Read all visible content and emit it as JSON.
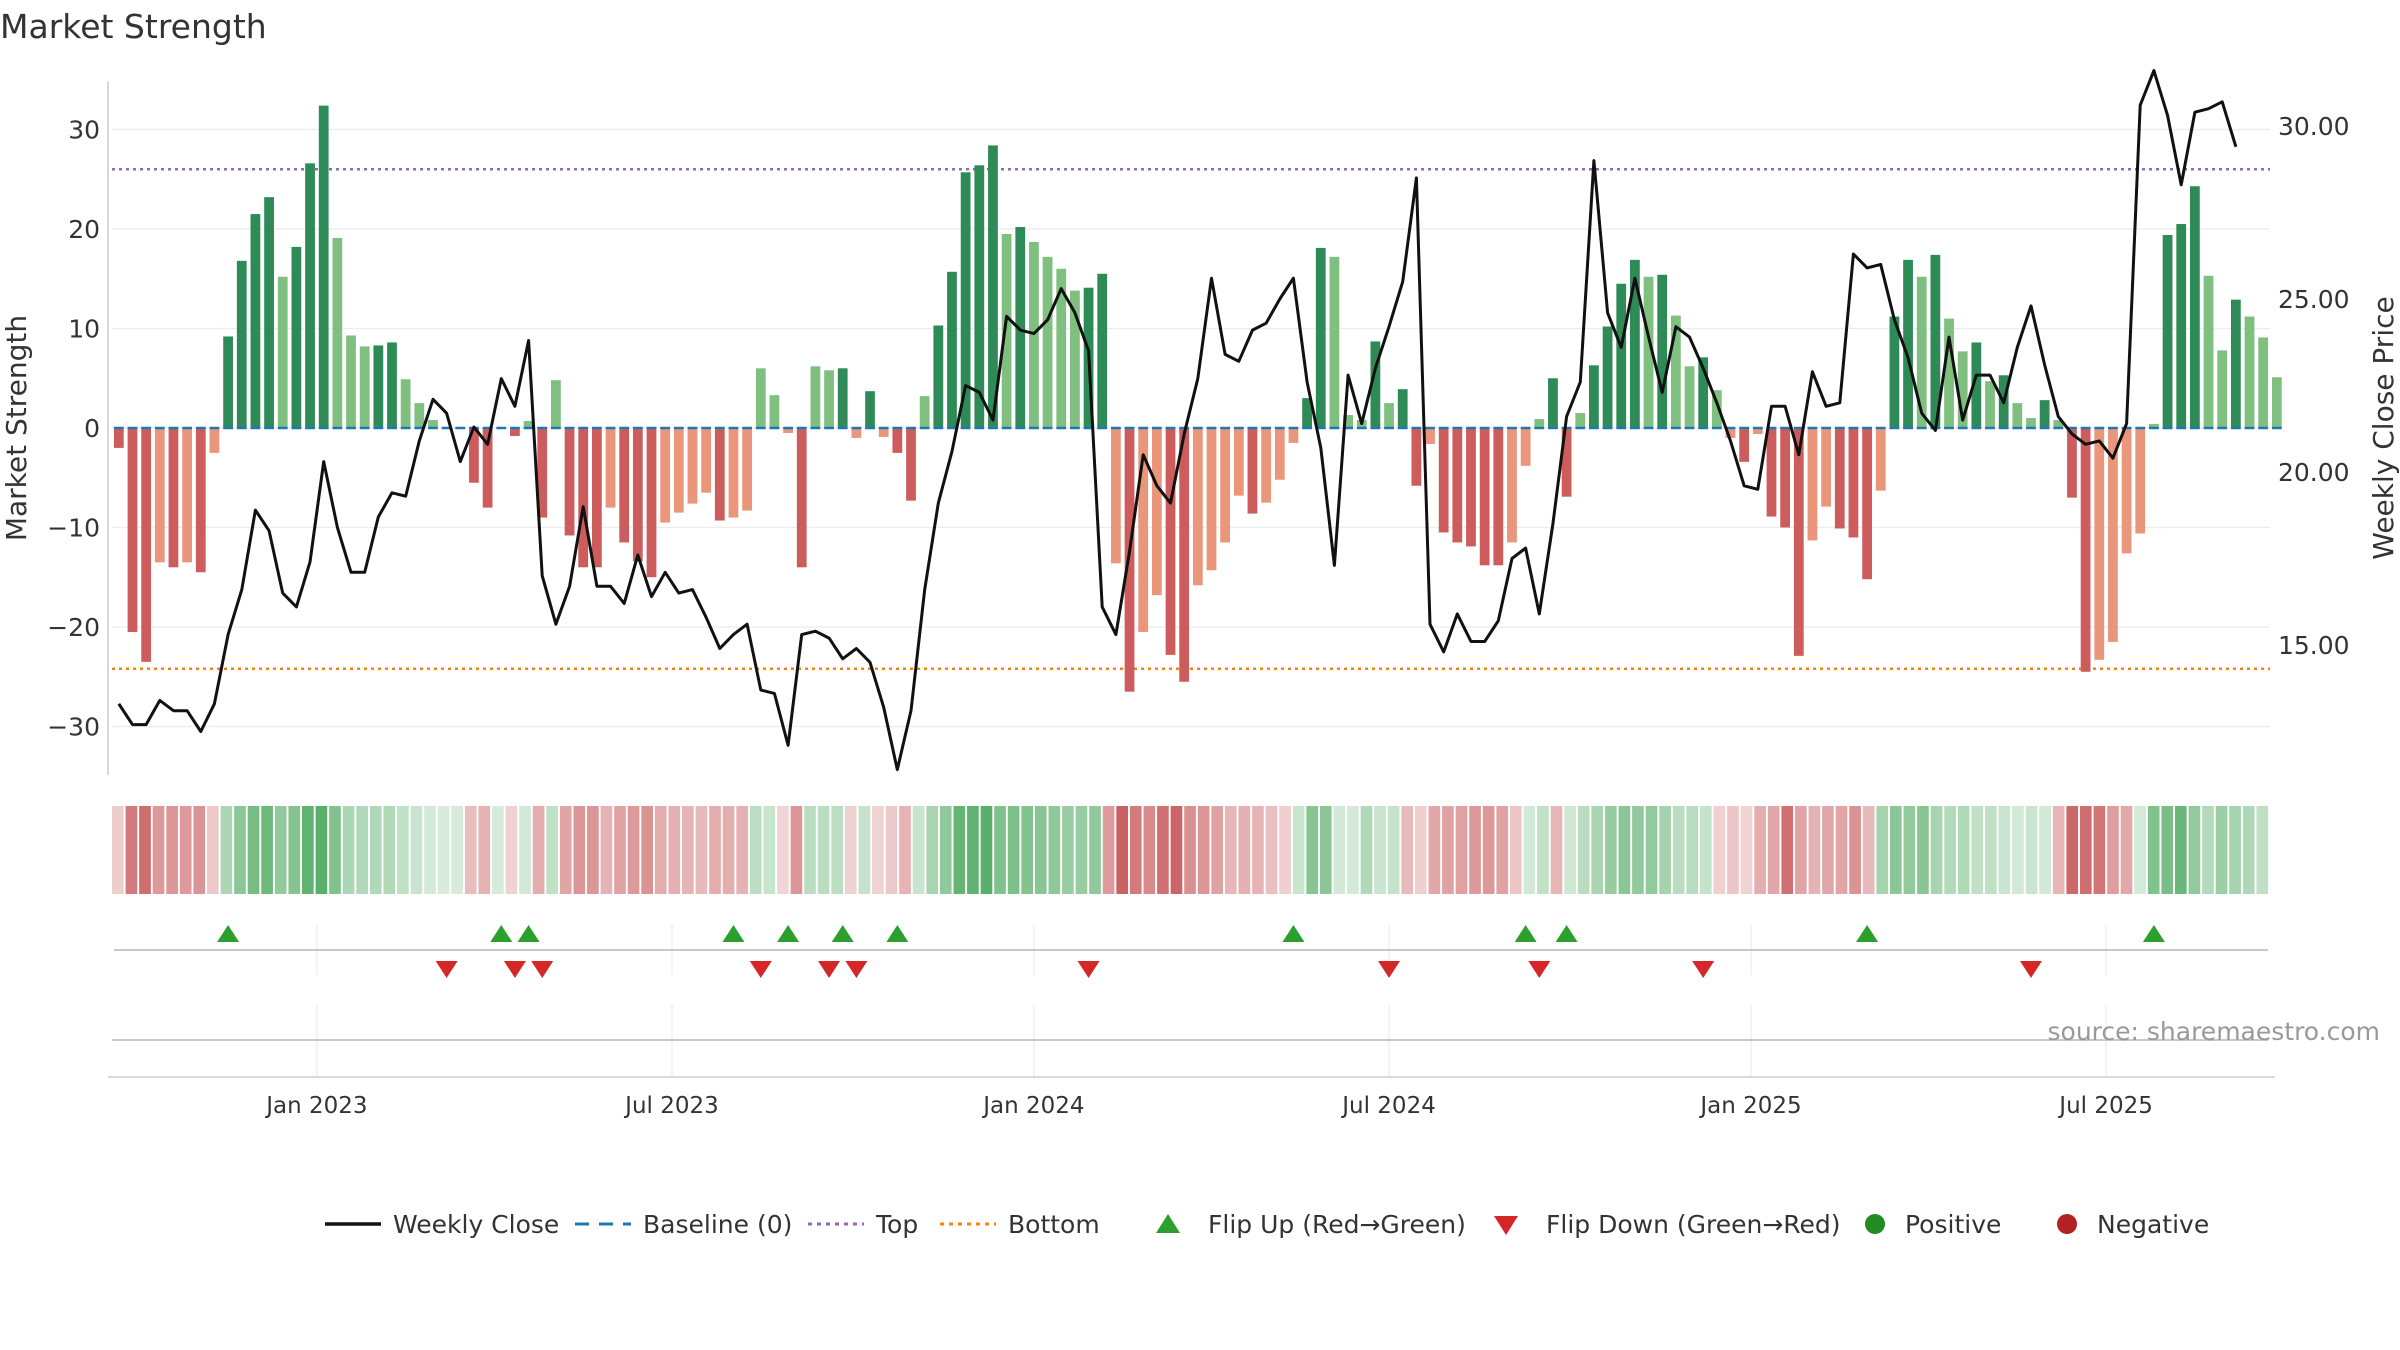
{
  "chart_data": {
    "type": "bar",
    "title": "Market Strength",
    "ylabel": "Market Strength",
    "y2label": "Weekly Close Price",
    "source": "source: sharemaestro.com",
    "ylim": [
      -35,
      36
    ],
    "y2lim": [
      10.9,
      31.6
    ],
    "yticks": [
      30,
      20,
      10,
      0,
      -10,
      -20,
      -30
    ],
    "ytick_labels": [
      "30",
      "20",
      "10",
      "0",
      "−10",
      "−20",
      "−30"
    ],
    "y2ticks": [
      30,
      25,
      20,
      15
    ],
    "y2tick_labels": [
      "30.00",
      "25.00",
      "20.00",
      "15.00"
    ],
    "x_range_weeks": [
      0,
      158
    ],
    "xticks": [
      {
        "week": 15,
        "label": "Jan 2023"
      },
      {
        "week": 41,
        "label": "Jul 2023"
      },
      {
        "week": 67.5,
        "label": "Jan 2024"
      },
      {
        "week": 93.5,
        "label": "Jul 2024"
      },
      {
        "week": 120,
        "label": "Jan 2025"
      },
      {
        "week": 146,
        "label": "Jul 2025"
      }
    ],
    "top_line": 26,
    "bottom_line": -24.2,
    "strength": [
      -2,
      -20.5,
      -23.5,
      -13.5,
      -14,
      -13.5,
      -14.5,
      -2.5,
      9.2,
      16.8,
      21.5,
      23.2,
      15.2,
      18.2,
      26.6,
      32.4,
      19.1,
      9.3,
      8.2,
      8.3,
      8.6,
      4.9,
      2.5,
      0.8,
      0,
      0,
      -5.5,
      -8,
      0,
      -0.8,
      0.7,
      -9,
      4.8,
      -10.8,
      -14,
      -14,
      -8,
      -11.5,
      -13.4,
      -15,
      -9.5,
      -8.5,
      -7.6,
      -6.5,
      -9.3,
      -9,
      -8.3,
      6,
      3.3,
      -0.5,
      -14,
      6.2,
      5.8,
      6,
      -1,
      3.7,
      -0.9,
      -2.5,
      -7.3,
      3.2,
      10.3,
      15.7,
      25.7,
      26.4,
      28.4,
      19.5,
      20.2,
      18.7,
      17.2,
      16,
      13.8,
      14.1,
      15.5,
      -13.6,
      -26.5,
      -20.5,
      -16.8,
      -22.8,
      -25.5,
      -15.8,
      -14.3,
      -11.5,
      -6.8,
      -8.6,
      -7.5,
      -5.2,
      -1.5,
      3,
      18.1,
      17.2,
      1.3,
      0.8,
      8.7,
      2.5,
      3.9,
      -5.8,
      -1.6,
      -10.5,
      -11.5,
      -11.9,
      -13.8,
      -13.8,
      -11.5,
      -3.8,
      0.9,
      5,
      -6.9,
      1.5,
      6.3,
      10.2,
      14.5,
      16.9,
      15.2,
      15.4,
      11.3,
      6.2,
      7.1,
      3.8,
      -1,
      -3.4,
      -0.6,
      -8.9,
      -10,
      -22.9,
      -11.3,
      -7.9,
      -10.1,
      -11,
      -15.2,
      -6.3,
      11.2,
      16.9,
      15.2,
      17.4,
      11,
      7.7,
      8.6,
      4.7,
      5.3,
      2.5,
      1,
      2.8,
      0.8,
      -7,
      -24.5,
      -23.3,
      -21.5,
      -12.6,
      -10.6,
      0.4,
      19.4,
      20.5,
      24.3,
      15.3,
      7.8,
      12.9,
      11.2,
      9.1,
      5.1
    ],
    "weekly_close": [
      13.3,
      12.7,
      12.7,
      13.4,
      13.1,
      13.1,
      12.5,
      13.3,
      15.3,
      16.6,
      18.9,
      18.3,
      16.5,
      16.1,
      17.4,
      20.3,
      18.4,
      17.1,
      17.1,
      18.7,
      19.4,
      19.3,
      20.9,
      22.1,
      21.7,
      20.3,
      21.3,
      20.8,
      22.7,
      21.9,
      23.8,
      17.0,
      15.6,
      16.7,
      19.0,
      16.7,
      16.7,
      16.2,
      17.6,
      16.4,
      17.1,
      16.5,
      16.6,
      15.8,
      14.9,
      15.3,
      15.6,
      13.7,
      13.6,
      12.1,
      15.3,
      15.4,
      15.2,
      14.6,
      14.9,
      14.5,
      13.2,
      11.4,
      13.1,
      16.6,
      19.1,
      20.6,
      22.5,
      22.3,
      21.5,
      24.5,
      24.1,
      24.0,
      24.4,
      25.3,
      24.6,
      23.5,
      16.1,
      15.3,
      17.7,
      20.5,
      19.6,
      19.1,
      21.1,
      22.7,
      25.6,
      23.4,
      23.2,
      24.1,
      24.3,
      25.0,
      25.6,
      22.6,
      20.7,
      17.3,
      22.8,
      21.4,
      23.0,
      24.2,
      25.5,
      28.5,
      15.6,
      14.8,
      15.9,
      15.1,
      15.1,
      15.7,
      17.5,
      17.8,
      15.9,
      18.5,
      21.6,
      22.6,
      29.0,
      24.6,
      23.6,
      25.6,
      23.9,
      22.3,
      24.2,
      23.9,
      23.0,
      22.0,
      20.9,
      19.6,
      19.5,
      21.9,
      21.9,
      20.5,
      22.9,
      21.9,
      22.0,
      26.3,
      25.9,
      26.0,
      24.4,
      23.3,
      21.7,
      21.2,
      23.9,
      21.5,
      22.8,
      22.8,
      22.0,
      23.6,
      24.8,
      23.1,
      21.6,
      21.1,
      20.8,
      20.9,
      20.4,
      21.4,
      30.6,
      31.6,
      30.3,
      28.3,
      30.4,
      30.5,
      30.7,
      29.4
    ],
    "flip_up_weeks": [
      8,
      28,
      30,
      45,
      49,
      53,
      57,
      86,
      103,
      106,
      128,
      149
    ],
    "flip_down_weeks": [
      24,
      29,
      31,
      47,
      52,
      54,
      71,
      93,
      104,
      116,
      140
    ],
    "colors": {
      "green_strong": "#2e8b57",
      "green_light": "#7fbf7f",
      "red_strong": "#cd5c5c",
      "red_light": "#e9967a",
      "close_line": "#111111",
      "baseline": "#1f77b4",
      "top": "#9467bd",
      "bottom": "#ff7f0e",
      "flip_up": "#2ca02c",
      "flip_down": "#d62728",
      "positive": "#228b22",
      "negative": "#b22222",
      "heat_green": "#5aaf6a",
      "heat_red": "#c8595b"
    },
    "legend": [
      {
        "label": "Weekly Close",
        "kind": "line",
        "color": "#111111"
      },
      {
        "label": "Baseline (0)",
        "kind": "dash",
        "color": "#1f77b4"
      },
      {
        "label": "Top",
        "kind": "dot",
        "color": "#9467bd"
      },
      {
        "label": "Bottom",
        "kind": "dot",
        "color": "#ff7f0e"
      },
      {
        "label": "Flip Up (Red→Green)",
        "kind": "tri-up",
        "color": "#2ca02c"
      },
      {
        "label": "Flip Down (Green→Red)",
        "kind": "tri-down",
        "color": "#d62728"
      },
      {
        "label": "Positive",
        "kind": "circle",
        "color": "#228b22"
      },
      {
        "label": "Negative",
        "kind": "circle",
        "color": "#b22222"
      }
    ],
    "legend_location": "bottom-center"
  }
}
